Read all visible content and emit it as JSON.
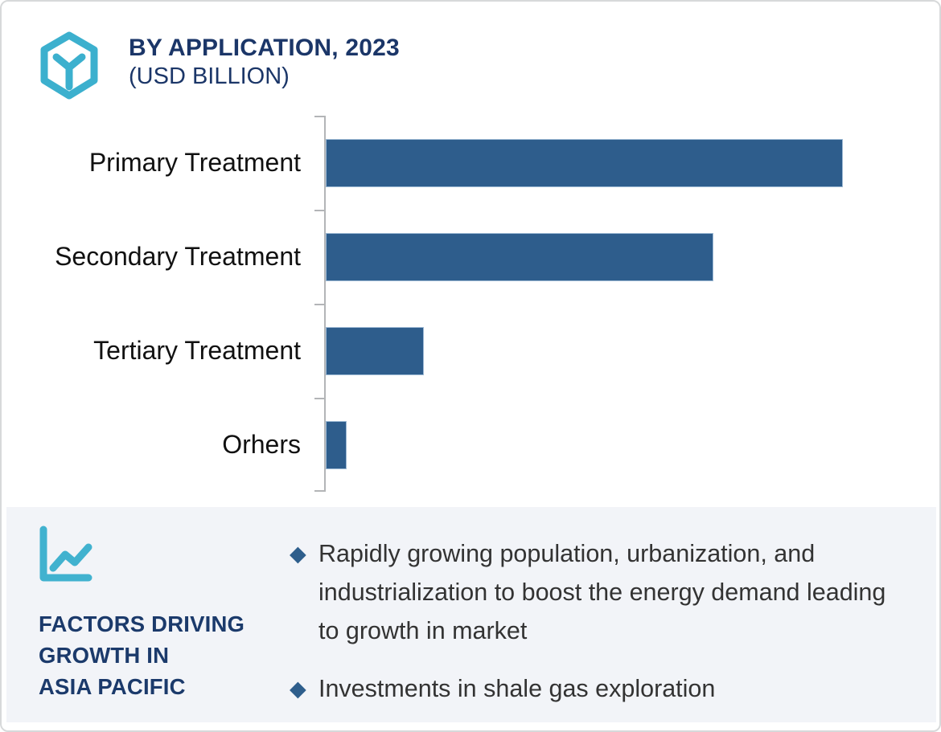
{
  "header": {
    "icon": "hexagon-cube-icon",
    "title": "BY APPLICATION, 2023",
    "subtitle": "(USD BILLION)"
  },
  "chart_data": {
    "type": "bar",
    "orientation": "horizontal",
    "title": "BY APPLICATION, 2023 (USD BILLION)",
    "categories": [
      "Primary Treatment",
      "Secondary Treatment",
      "Tertiary Treatment",
      "Orhers"
    ],
    "values": [
      100,
      75,
      19,
      4
    ],
    "values_note": "relative scale estimated from bar lengths; no numeric axis or data labels are shown in the image",
    "xlabel": "",
    "ylabel": "",
    "xlim": [
      0,
      107
    ],
    "grid": false,
    "legend": false,
    "bar_color": "#2e5d8c",
    "axis_color": "#b3b5b7"
  },
  "factors": {
    "icon": "line-chart-icon",
    "heading_lines": [
      "FACTORS DRIVING",
      "GROWTH IN",
      "ASIA PACIFIC"
    ],
    "bullet_glyph": "◆",
    "bullets": [
      "Rapidly growing population, urbanization, and industrialization to boost the energy demand leading to growth in market",
      "Investments in shale gas exploration"
    ]
  },
  "colors": {
    "accent_teal": "#3cb0ce",
    "navy": "#1b3668",
    "bar_blue": "#2e5d8c",
    "panel_bg": "#f2f4f8",
    "body_text": "#333333"
  }
}
